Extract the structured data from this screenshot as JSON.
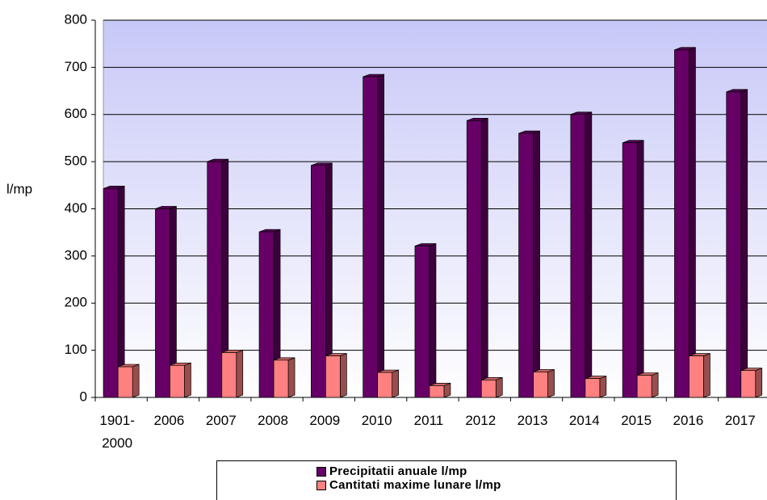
{
  "chart_data": {
    "type": "bar",
    "y_label": "l/mp",
    "categories": [
      "1901-2000",
      "2006",
      "2007",
      "2008",
      "2009",
      "2010",
      "2011",
      "2012",
      "2013",
      "2014",
      "2015",
      "2016",
      "2017"
    ],
    "series": [
      {
        "name": "Precipitatii anuale l/mp",
        "color": "#660066",
        "values": [
          443,
          400,
          500,
          351,
          492,
          680,
          321,
          587,
          560,
          600,
          540,
          737,
          648
        ]
      },
      {
        "name": "Cantitati maxime lunare l/mp",
        "color": "#ff8080",
        "values": [
          65,
          68,
          95,
          79,
          88,
          53,
          25,
          37,
          54,
          40,
          47,
          88,
          57
        ]
      }
    ],
    "ylim": [
      0,
      800
    ],
    "yticks": [
      0,
      100,
      200,
      300,
      400,
      500,
      600,
      700,
      800
    ],
    "grid": true
  }
}
